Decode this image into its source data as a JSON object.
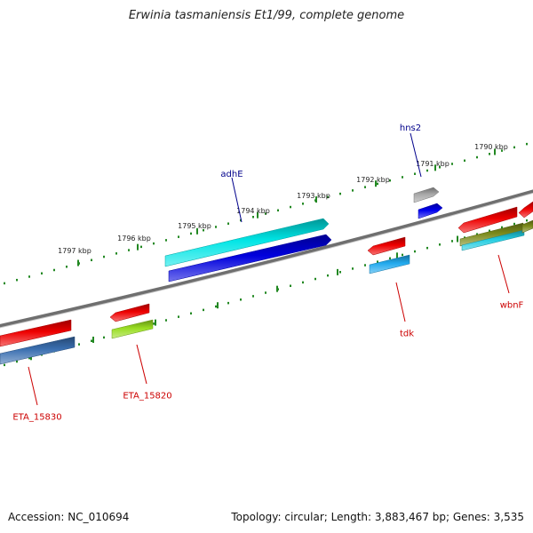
{
  "title": "Erwinia tasmaniensis Et1/99, complete genome",
  "footer": {
    "accession": "Accession: NC_010694",
    "topology": "Topology: circular; Length: 3,883,467 bp; Genes: 3,535"
  },
  "colors": {
    "backbone": "#7a7a7a",
    "tick": "#228822",
    "label_forward": "#00008b",
    "label_reverse": "#cc0000"
  },
  "scale_labels": [
    "1797 kbp",
    "1796 kbp",
    "1795 kbp",
    "1794 kbp",
    "1793 kbp",
    "1792 kbp",
    "1791 kbp",
    "1790 kbp"
  ],
  "gene_labels": [
    {
      "name": "adhE",
      "strand": "forward"
    },
    {
      "name": "hns2",
      "strand": "forward"
    },
    {
      "name": "tdk",
      "strand": "reverse"
    },
    {
      "name": "wbnF",
      "strand": "reverse"
    },
    {
      "name": "ETA_15820",
      "strand": "reverse"
    },
    {
      "name": "ETA_15830",
      "strand": "reverse"
    }
  ],
  "features": [
    {
      "name": "adhE-gene",
      "color": "#00e5e5"
    },
    {
      "name": "adhE-cds",
      "color": "#0000dd"
    },
    {
      "name": "hns2-gene",
      "color": "#a8a8a8"
    },
    {
      "name": "hns2-cds",
      "color": "#0000ee"
    },
    {
      "name": "tdk-gene",
      "color": "#ee0000"
    },
    {
      "name": "tdk-cds",
      "color": "#22aaee"
    },
    {
      "name": "wbnF-gene",
      "color": "#ee0000"
    },
    {
      "name": "wbnF-cds-olive",
      "color": "#7a8a1a"
    },
    {
      "name": "wbnF-cds-cyan",
      "color": "#22cce0"
    },
    {
      "name": "edge-gene",
      "color": "#ee0000"
    },
    {
      "name": "edge-cds-olive",
      "color": "#7a8a1a"
    },
    {
      "name": "ETA_15820-gene",
      "color": "#ee0000"
    },
    {
      "name": "ETA_15820-cds",
      "color": "#99dd22"
    },
    {
      "name": "ETA_15830-gene",
      "color": "#ee0000"
    },
    {
      "name": "ETA_15830-cds",
      "color": "#3a6fb0"
    }
  ]
}
